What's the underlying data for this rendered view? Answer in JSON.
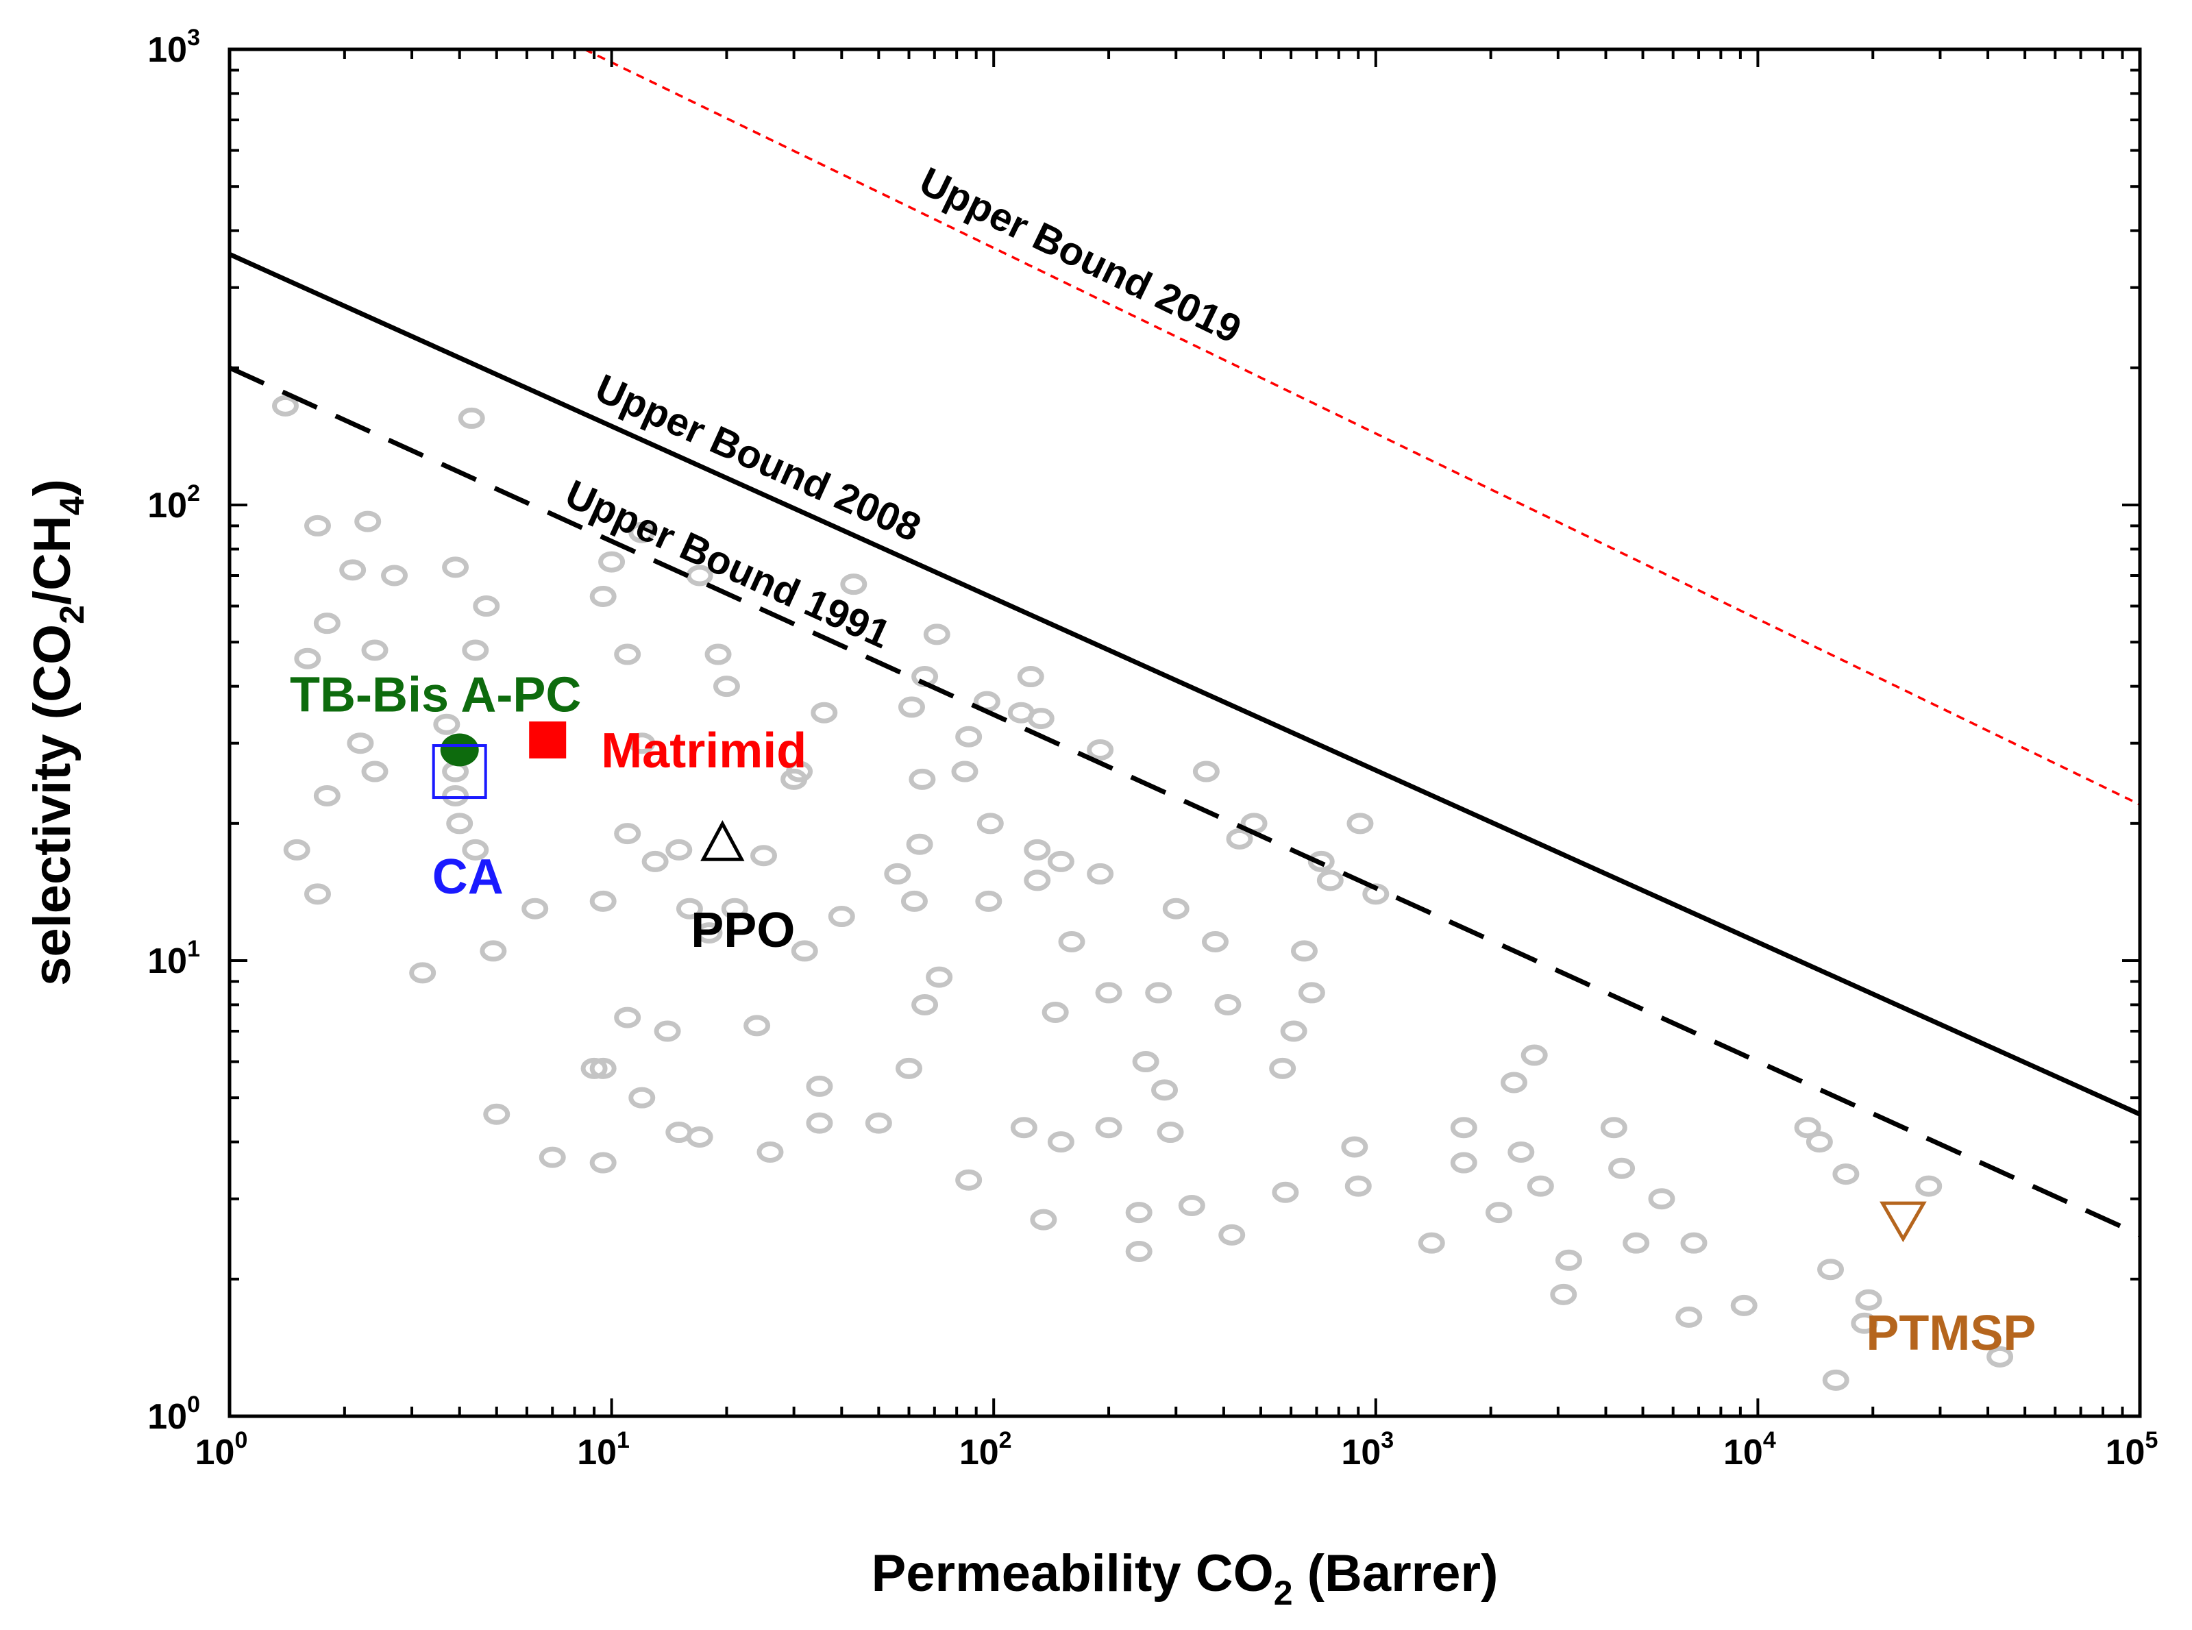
{
  "chart_data": {
    "type": "scatter",
    "x_scale": "log",
    "y_scale": "log",
    "xlim": [
      1,
      100000
    ],
    "ylim": [
      1,
      1000
    ],
    "xlabel": {
      "main": "Permeability CO",
      "sub": "2",
      "rest": " (Barrer)"
    },
    "ylabel": {
      "p1": "selectivity (CO",
      "s1": "2",
      "p2": "/CH",
      "s2": "4",
      "p3": ")"
    },
    "x_ticks": [
      {
        "base": "10",
        "exp": "0",
        "value": 1
      },
      {
        "base": "10",
        "exp": "1",
        "value": 10
      },
      {
        "base": "10",
        "exp": "2",
        "value": 100
      },
      {
        "base": "10",
        "exp": "3",
        "value": 1000
      },
      {
        "base": "10",
        "exp": "4",
        "value": 10000
      },
      {
        "base": "10",
        "exp": "5",
        "value": 100000
      }
    ],
    "y_ticks": [
      {
        "base": "10",
        "exp": "0",
        "value": 1
      },
      {
        "base": "10",
        "exp": "1",
        "value": 10
      },
      {
        "base": "10",
        "exp": "2",
        "value": 100
      },
      {
        "base": "10",
        "exp": "3",
        "value": 1000
      }
    ],
    "upper_bounds": [
      {
        "label": "Upper Bound 1991",
        "style": "dashed",
        "color": "#000000",
        "points": [
          [
            1,
            200
          ],
          [
            100000,
            2.5
          ]
        ]
      },
      {
        "label": "Upper Bound 2008",
        "style": "solid",
        "color": "#000000",
        "points": [
          [
            1,
            355
          ],
          [
            100000,
            4.6
          ]
        ]
      },
      {
        "label": "Upper Bound 2019",
        "style": "dotted",
        "color": "#ff0000",
        "points": [
          [
            8.5,
            1000
          ],
          [
            100000,
            22
          ]
        ]
      }
    ],
    "materials": [
      {
        "label": "TB-Bis A-PC",
        "color": "#0d6b0d",
        "marker": "filled-circle",
        "x": 4.0,
        "y": 29
      },
      {
        "label": "Matrimid",
        "color": "#ff0000",
        "marker": "filled-square",
        "x": 6.8,
        "y": 30.5
      },
      {
        "label": "CA",
        "color": "#1a1aff",
        "marker": "open-square",
        "x": 4.0,
        "y": 26
      },
      {
        "label": "PPO",
        "color": "#000000",
        "marker": "open-triangle-up",
        "x": 19.5,
        "y": 18
      },
      {
        "label": "PTMSP",
        "color": "#b5651d",
        "marker": "open-triangle-down",
        "x": 24000,
        "y": 2.7
      }
    ],
    "literature_points": [
      [
        1.4,
        165
      ],
      [
        1.7,
        90
      ],
      [
        2.3,
        92
      ],
      [
        2.1,
        72
      ],
      [
        2.7,
        70
      ],
      [
        1.8,
        55
      ],
      [
        1.6,
        46
      ],
      [
        2.4,
        48
      ],
      [
        2.2,
        30
      ],
      [
        2.4,
        26
      ],
      [
        1.8,
        23
      ],
      [
        1.5,
        17.5
      ],
      [
        1.7,
        14
      ],
      [
        3.9,
        73
      ],
      [
        4.3,
        155
      ],
      [
        4.7,
        60
      ],
      [
        4.4,
        48
      ],
      [
        3.7,
        33
      ],
      [
        3.9,
        26
      ],
      [
        3.9,
        23
      ],
      [
        4.0,
        20
      ],
      [
        4.4,
        17.5
      ],
      [
        6.3,
        13
      ],
      [
        3.2,
        9.4
      ],
      [
        4.9,
        10.5
      ],
      [
        9.5,
        63
      ],
      [
        10,
        75
      ],
      [
        11,
        47
      ],
      [
        12,
        87
      ],
      [
        17,
        70
      ],
      [
        19,
        47
      ],
      [
        20,
        40
      ],
      [
        12,
        30
      ],
      [
        13,
        16.5
      ],
      [
        11,
        19
      ],
      [
        15,
        17.5
      ],
      [
        9.5,
        13.5
      ],
      [
        16,
        13
      ],
      [
        21,
        13
      ],
      [
        18,
        11.5
      ],
      [
        25,
        17
      ],
      [
        30,
        25
      ],
      [
        31,
        26
      ],
      [
        36,
        35
      ],
      [
        32,
        10.5
      ],
      [
        40,
        12.5
      ],
      [
        11,
        7.5
      ],
      [
        14,
        7
      ],
      [
        9,
        5.8
      ],
      [
        9.5,
        5.8
      ],
      [
        12,
        5
      ],
      [
        5,
        4.6
      ],
      [
        7,
        3.7
      ],
      [
        9.5,
        3.6
      ],
      [
        15,
        4.2
      ],
      [
        17,
        4.1
      ],
      [
        24,
        7.2
      ],
      [
        35,
        5.3
      ],
      [
        35,
        4.4
      ],
      [
        50,
        4.4
      ],
      [
        26,
        3.8
      ],
      [
        43,
        67
      ],
      [
        61,
        36
      ],
      [
        66,
        42
      ],
      [
        71,
        52
      ],
      [
        86,
        31
      ],
      [
        96,
        37
      ],
      [
        125,
        42
      ],
      [
        118,
        35
      ],
      [
        133,
        34
      ],
      [
        65,
        25
      ],
      [
        84,
        26
      ],
      [
        190,
        29
      ],
      [
        64,
        18
      ],
      [
        98,
        20
      ],
      [
        56,
        15.5
      ],
      [
        62,
        13.5
      ],
      [
        97,
        13.5
      ],
      [
        130,
        15
      ],
      [
        130,
        17.5
      ],
      [
        150,
        16.5
      ],
      [
        190,
        15.5
      ],
      [
        360,
        26
      ],
      [
        440,
        18.5
      ],
      [
        480,
        20
      ],
      [
        720,
        16.5
      ],
      [
        760,
        15
      ],
      [
        1000,
        14
      ],
      [
        910,
        20
      ],
      [
        160,
        11
      ],
      [
        300,
        13
      ],
      [
        380,
        11
      ],
      [
        650,
        10.5
      ],
      [
        72,
        9.2
      ],
      [
        66,
        8
      ],
      [
        145,
        7.7
      ],
      [
        200,
        8.5
      ],
      [
        270,
        8.5
      ],
      [
        410,
        8
      ],
      [
        570,
        5.8
      ],
      [
        610,
        7
      ],
      [
        680,
        8.5
      ],
      [
        60,
        5.8
      ],
      [
        120,
        4.3
      ],
      [
        150,
        4
      ],
      [
        200,
        4.3
      ],
      [
        250,
        6
      ],
      [
        280,
        5.2
      ],
      [
        290,
        4.2
      ],
      [
        86,
        3.3
      ],
      [
        135,
        2.7
      ],
      [
        240,
        2.8
      ],
      [
        240,
        2.3
      ],
      [
        330,
        2.9
      ],
      [
        420,
        2.5
      ],
      [
        580,
        3.1
      ],
      [
        880,
        3.9
      ],
      [
        900,
        3.2
      ],
      [
        1400,
        2.4
      ],
      [
        1700,
        4.3
      ],
      [
        1700,
        3.6
      ],
      [
        2100,
        2.8
      ],
      [
        2300,
        5.4
      ],
      [
        2600,
        6.2
      ],
      [
        2400,
        3.8
      ],
      [
        2700,
        3.2
      ],
      [
        3200,
        2.2
      ],
      [
        3100,
        1.85
      ],
      [
        4200,
        4.3
      ],
      [
        4400,
        3.5
      ],
      [
        4800,
        2.4
      ],
      [
        5600,
        3.0
      ],
      [
        6800,
        2.4
      ],
      [
        6600,
        1.65
      ],
      [
        9200,
        1.75
      ],
      [
        13500,
        4.3
      ],
      [
        14500,
        4.0
      ],
      [
        15500,
        2.1
      ],
      [
        17000,
        3.4
      ],
      [
        19500,
        1.8
      ],
      [
        19000,
        1.6
      ],
      [
        16000,
        1.2
      ],
      [
        28000,
        3.2
      ],
      [
        43000,
        1.35
      ]
    ]
  }
}
